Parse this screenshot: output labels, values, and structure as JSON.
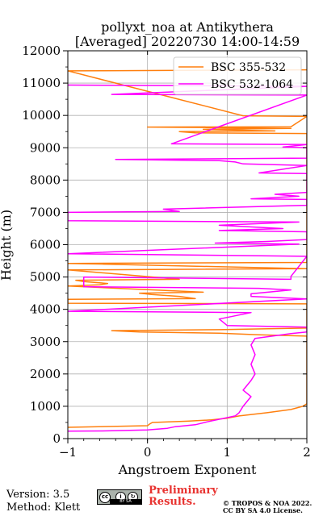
{
  "header": {
    "title_line1": "pollyxt_noa at Antikythera",
    "title_line2": "[Averaged] 20220730 14:00-14:59"
  },
  "footer": {
    "version": "Version: 3.5",
    "method": "Method: Klett",
    "preliminary_line1": "Preliminary",
    "preliminary_line2": "Results.",
    "copyright_line1": "© TROPOS & NOA 2022.",
    "copyright_line2": "CC BY SA 4.0 License.",
    "license_icon": "cc-by-sa-badge-icon"
  },
  "chart_data": {
    "type": "line",
    "title": "pollyxt_noa at Antikythera [Averaged] 20220730 14:00-14:59",
    "xlabel": "Angstroem Exponent",
    "ylabel": "Height (m)",
    "xlim": [
      -1,
      2
    ],
    "ylim": [
      0,
      12000
    ],
    "xticks": [
      -1,
      0,
      1,
      2
    ],
    "yticks": [
      0,
      1000,
      2000,
      3000,
      4000,
      5000,
      6000,
      7000,
      8000,
      9000,
      10000,
      11000,
      12000
    ],
    "grid": true,
    "legend_position": "top-right",
    "series": [
      {
        "name": "BSC 355-532",
        "color": "#ff7f0e",
        "points": [
          [
            -1,
            350
          ],
          [
            0,
            400
          ],
          [
            0.02,
            440
          ],
          [
            0.06,
            500
          ],
          [
            0.5,
            540
          ],
          [
            0.8,
            580
          ],
          [
            1.0,
            630
          ],
          [
            1.15,
            700
          ],
          [
            1.5,
            800
          ],
          [
            1.8,
            900
          ],
          [
            1.95,
            1000
          ],
          [
            2.0,
            1080
          ],
          [
            2.0,
            3170
          ],
          [
            1.4,
            3210
          ],
          [
            0.9,
            3260
          ],
          [
            -0.1,
            3300
          ],
          [
            -0.45,
            3340
          ],
          [
            0.9,
            3370
          ],
          [
            2.0,
            3420
          ],
          [
            2.0,
            4170
          ],
          [
            -1,
            4190
          ],
          [
            -1,
            4310
          ],
          [
            0.6,
            4330
          ],
          [
            0.4,
            4400
          ],
          [
            0.05,
            4460
          ],
          [
            -0.1,
            4500
          ],
          [
            0.7,
            4530
          ],
          [
            -1,
            4720
          ],
          [
            -0.6,
            4760
          ],
          [
            -0.5,
            4800
          ],
          [
            -0.8,
            4860
          ],
          [
            -0.9,
            4900
          ],
          [
            0.4,
            4930
          ],
          [
            -1,
            5220
          ],
          [
            2.0,
            5260
          ],
          [
            -1,
            5420
          ],
          [
            2.0,
            5450
          ],
          [
            2.0,
            9440
          ],
          [
            0.6,
            9460
          ],
          [
            0.4,
            9500
          ],
          [
            1.6,
            9520
          ],
          [
            0.7,
            9570
          ],
          [
            1.8,
            9600
          ],
          [
            0,
            9640
          ],
          [
            1.8,
            9650
          ],
          [
            2.0,
            9970
          ],
          [
            1.2,
            9990
          ],
          [
            -1,
            11380
          ],
          [
            2.0,
            11410
          ]
        ]
      },
      {
        "name": "BSC 532-1064",
        "color": "#ff00ff",
        "points": [
          [
            -1,
            230
          ],
          [
            -0.5,
            240
          ],
          [
            0,
            270
          ],
          [
            0.25,
            320
          ],
          [
            0.35,
            370
          ],
          [
            0.6,
            430
          ],
          [
            0.75,
            520
          ],
          [
            1.1,
            700
          ],
          [
            1.15,
            800
          ],
          [
            1.2,
            1000
          ],
          [
            1.3,
            1300
          ],
          [
            1.2,
            1500
          ],
          [
            1.3,
            1800
          ],
          [
            1.35,
            2000
          ],
          [
            1.3,
            2300
          ],
          [
            1.35,
            2600
          ],
          [
            1.3,
            2900
          ],
          [
            1.35,
            3100
          ],
          [
            1.5,
            3150
          ],
          [
            1.8,
            3250
          ],
          [
            2.0,
            3300
          ],
          [
            2.0,
            3450
          ],
          [
            1.0,
            3500
          ],
          [
            0.9,
            3700
          ],
          [
            1.1,
            3800
          ],
          [
            1.3,
            3900
          ],
          [
            -1,
            3940
          ],
          [
            2.0,
            4320
          ],
          [
            1.3,
            4400
          ],
          [
            1.3,
            4480
          ],
          [
            1.8,
            4600
          ],
          [
            1.4,
            4650
          ],
          [
            -0.8,
            4700
          ],
          [
            -0.8,
            5000
          ],
          [
            1.8,
            4930
          ],
          [
            1.8,
            5020
          ],
          [
            2.0,
            5640
          ],
          [
            -1,
            5720
          ],
          [
            1.9,
            6020
          ],
          [
            0.85,
            6050
          ],
          [
            1.5,
            6100
          ],
          [
            2.0,
            6160
          ],
          [
            2.0,
            6400
          ],
          [
            0.9,
            6440
          ],
          [
            1.7,
            6500
          ],
          [
            0.9,
            6600
          ],
          [
            1.9,
            6700
          ],
          [
            -1,
            6740
          ],
          [
            -1,
            7000
          ],
          [
            0.4,
            7030
          ],
          [
            0.2,
            7100
          ],
          [
            2.0,
            7220
          ],
          [
            2.0,
            7400
          ],
          [
            1.3,
            7420
          ],
          [
            1.9,
            7500
          ],
          [
            1.6,
            7560
          ],
          [
            2.0,
            7620
          ],
          [
            2.0,
            8200
          ],
          [
            1.4,
            8220
          ],
          [
            2.0,
            8450
          ],
          [
            1.2,
            8500
          ],
          [
            1.1,
            8560
          ],
          [
            0.9,
            8600
          ],
          [
            -0.4,
            8640
          ],
          [
            2.0,
            8680
          ],
          [
            2.0,
            9000
          ],
          [
            1.7,
            9020
          ],
          [
            2.0,
            9100
          ],
          [
            0.3,
            9120
          ],
          [
            2.0,
            10630
          ],
          [
            -0.45,
            10650
          ],
          [
            2.0,
            10900
          ],
          [
            -1,
            10940
          ]
        ]
      }
    ]
  }
}
